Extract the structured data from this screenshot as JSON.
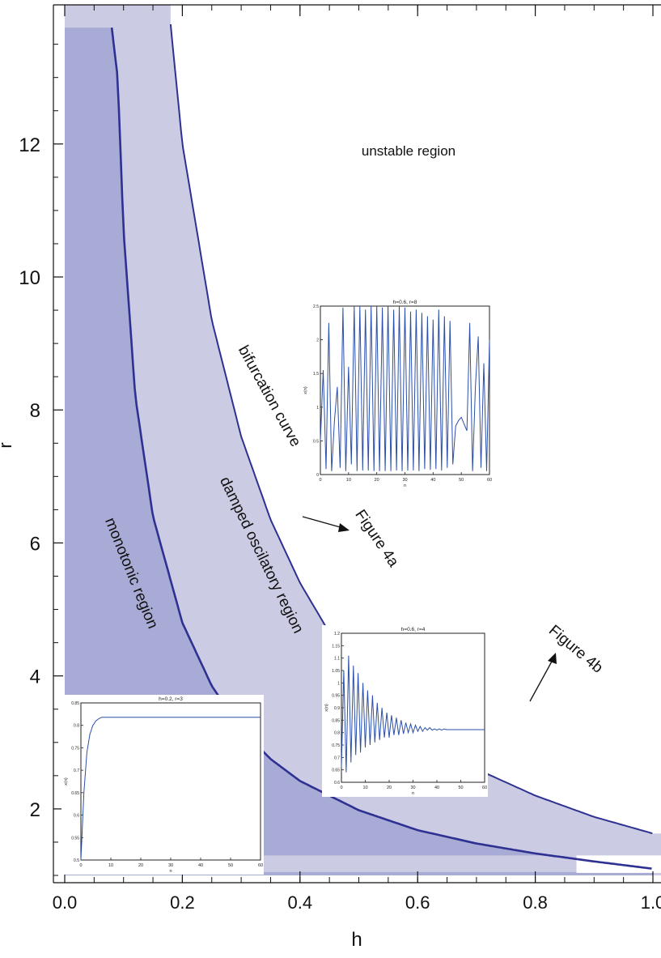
{
  "chart_data": {
    "type": "area",
    "title": "",
    "xlabel": "h",
    "ylabel": "r",
    "xlim": [
      0.0,
      1.0
    ],
    "ylim": [
      1.0,
      13.8
    ],
    "x_ticks": [
      "0.0",
      "0.2",
      "0.4",
      "0.6",
      "0.8",
      "1.0"
    ],
    "y_ticks": [
      "2",
      "4",
      "6",
      "8",
      "10",
      "12"
    ],
    "series": [
      {
        "name": "bifurcation curve",
        "color": "#2e3192",
        "x": [
          0.18,
          0.2,
          0.25,
          0.3,
          0.35,
          0.4,
          0.45,
          0.5,
          0.55,
          0.6,
          0.7,
          0.8,
          0.9,
          1.0
        ],
        "y": [
          13.8,
          12.0,
          9.35,
          7.6,
          6.35,
          5.4,
          4.65,
          4.05,
          3.57,
          3.18,
          2.6,
          2.2,
          1.88,
          1.63
        ]
      },
      {
        "name": "",
        "color": "#2e3192",
        "x": [
          0.08,
          0.09,
          0.1,
          0.12,
          0.15,
          0.2,
          0.25,
          0.3,
          0.35,
          0.4,
          0.5,
          0.6,
          0.7,
          0.8,
          0.9,
          1.0
        ],
        "y": [
          13.75,
          13.0,
          10.7,
          8.2,
          6.4,
          4.8,
          3.85,
          3.2,
          2.75,
          2.42,
          1.98,
          1.68,
          1.48,
          1.33,
          1.21,
          1.1
        ]
      }
    ],
    "regions": [
      "unstable region",
      "damped oscilatory region",
      "monotonic region"
    ],
    "annotations": [
      "bifurcation curve",
      "Figure 4a",
      "Figure 4b"
    ],
    "insets": [
      {
        "name": "Figure 4a",
        "title": "h=0.6, r=8",
        "xlabel": "n",
        "ylabel": "x(n)",
        "xlim": [
          0,
          60
        ],
        "ylim": [
          0,
          2.5
        ],
        "x_ticks": [
          "0",
          "10",
          "20",
          "30",
          "40",
          "50",
          "60"
        ],
        "y_ticks": [
          "0",
          "0.5",
          "1",
          "1.5",
          "2",
          "2.5"
        ],
        "x": [
          0,
          1,
          2,
          3,
          4,
          5,
          6,
          7,
          8,
          9,
          10,
          11,
          12,
          13,
          14,
          15,
          16,
          17,
          18,
          19,
          20,
          21,
          22,
          23,
          24,
          25,
          26,
          27,
          28,
          29,
          30,
          31,
          32,
          33,
          34,
          35,
          36,
          37,
          38,
          39,
          40,
          41,
          42,
          43,
          44,
          45,
          46,
          47,
          48,
          49,
          50,
          51,
          52,
          53,
          54,
          55,
          56,
          57,
          58,
          59,
          60
        ],
        "y": [
          0.5,
          1.55,
          0.08,
          2.25,
          0.05,
          0.8,
          1.3,
          0.1,
          2.48,
          0.05,
          1.6,
          0.15,
          2.5,
          0.05,
          2.5,
          0.06,
          2.45,
          0.06,
          2.5,
          0.05,
          2.5,
          0.05,
          2.48,
          0.05,
          2.5,
          0.05,
          2.45,
          0.06,
          2.5,
          0.05,
          2.48,
          0.06,
          2.42,
          0.06,
          2.45,
          0.05,
          2.4,
          0.08,
          2.35,
          0.07,
          2.3,
          0.08,
          2.45,
          0.06,
          2.35,
          0.1,
          2.28,
          0.15,
          0.72,
          0.8,
          0.85,
          0.75,
          0.65,
          2.25,
          0.05,
          1.3,
          2.05,
          0.1,
          1.65,
          0.05,
          2.0
        ]
      },
      {
        "name": "Figure 4b",
        "title": "h=0.6, r=4",
        "xlabel": "n",
        "ylabel": "x(n)",
        "xlim": [
          0,
          60
        ],
        "ylim": [
          0.6,
          1.2
        ],
        "x_ticks": [
          "0",
          "10",
          "20",
          "30",
          "40",
          "50",
          "60"
        ],
        "y_ticks": [
          "0.6",
          "0.65",
          "0.7",
          "0.75",
          "0.8",
          "0.85",
          "0.9",
          "0.95",
          "1",
          "1.05",
          "1.1",
          "1.15",
          "1.2"
        ],
        "x": [
          0,
          1,
          2,
          3,
          4,
          5,
          6,
          7,
          8,
          9,
          10,
          11,
          12,
          13,
          14,
          15,
          16,
          17,
          18,
          19,
          20,
          21,
          22,
          23,
          24,
          25,
          26,
          27,
          28,
          29,
          30,
          31,
          32,
          33,
          34,
          35,
          36,
          37,
          38,
          39,
          40,
          41,
          42,
          43,
          44,
          45,
          46,
          47,
          48,
          49,
          50,
          51,
          52,
          53,
          54,
          55,
          56,
          57,
          58,
          59,
          60
        ],
        "y": [
          0.66,
          1.05,
          0.64,
          1.11,
          0.68,
          1.07,
          0.71,
          1.04,
          0.72,
          1.0,
          0.74,
          0.97,
          0.75,
          0.95,
          0.76,
          0.92,
          0.77,
          0.9,
          0.78,
          0.88,
          0.78,
          0.87,
          0.79,
          0.86,
          0.79,
          0.85,
          0.795,
          0.84,
          0.8,
          0.835,
          0.8,
          0.83,
          0.805,
          0.825,
          0.805,
          0.82,
          0.81,
          0.82,
          0.81,
          0.815,
          0.81,
          0.815,
          0.81,
          0.815,
          0.812,
          0.812,
          0.812,
          0.812,
          0.812,
          0.812,
          0.812,
          0.812,
          0.812,
          0.812,
          0.812,
          0.812,
          0.812,
          0.812,
          0.812,
          0.812,
          0.812
        ]
      },
      {
        "name": "",
        "title": "h=0.2, r=3",
        "xlabel": "n",
        "ylabel": "x(n)",
        "xlim": [
          0,
          60
        ],
        "ylim": [
          0.5,
          0.85
        ],
        "x_ticks": [
          "0",
          "10",
          "20",
          "30",
          "40",
          "50",
          "60"
        ],
        "y_ticks": [
          "0.5",
          "0.55",
          "0.6",
          "0.65",
          "0.7",
          "0.75",
          "0.8",
          "0.85"
        ],
        "x": [
          0,
          1,
          2,
          3,
          4,
          5,
          6,
          7,
          8,
          9,
          10,
          15,
          20,
          30,
          40,
          50,
          60
        ],
        "y": [
          0.5,
          0.65,
          0.74,
          0.78,
          0.8,
          0.81,
          0.815,
          0.818,
          0.818,
          0.818,
          0.818,
          0.818,
          0.818,
          0.818,
          0.818,
          0.818,
          0.818
        ]
      }
    ],
    "colors": {
      "dark_region": "#a8abd5",
      "light_region": "#cbcce4",
      "curve": "#2e3192",
      "inset_line": "#2b4fa8"
    },
    "legend": "none",
    "grid": false
  }
}
